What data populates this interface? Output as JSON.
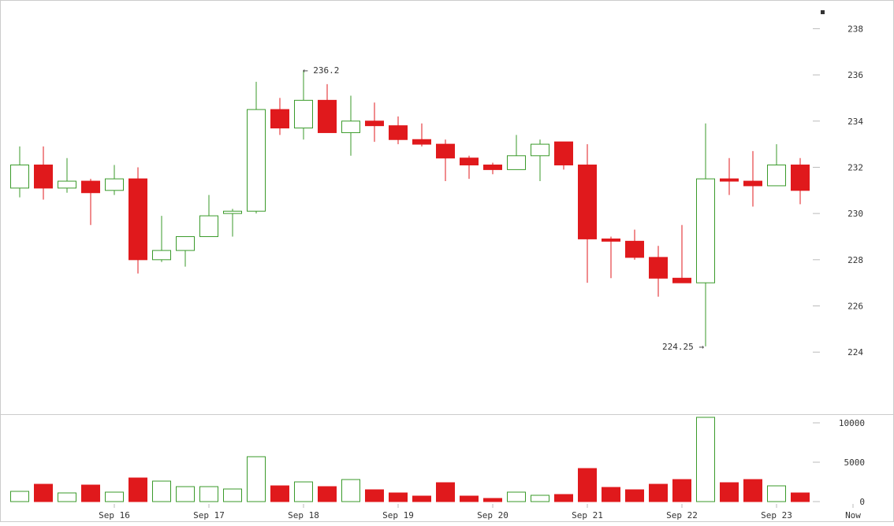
{
  "chart_data": {
    "type": "candlestick",
    "title": "",
    "colors": {
      "up": "#3a9a2a",
      "down": "#e0191c",
      "down_body": "#e0191c"
    },
    "x_tick_labels": [
      "Sep 16",
      "Sep 17",
      "Sep 18",
      "Sep 19",
      "Sep 20",
      "Sep 21",
      "Sep 22",
      "Sep 23",
      "Now"
    ],
    "price_axis": {
      "ticks": [
        224,
        226,
        228,
        230,
        232,
        234,
        236,
        238
      ],
      "ylim": [
        222.2,
        238.9
      ]
    },
    "volume_axis": {
      "ticks": [
        0,
        5000,
        10000
      ],
      "ylim": [
        0,
        10700
      ]
    },
    "annotations": {
      "high_label": "← 236.2",
      "low_label": "224.25 →"
    },
    "candles": [
      {
        "o": 231.1,
        "h": 232.9,
        "l": 230.7,
        "c": 232.1,
        "v": 1300
      },
      {
        "o": 232.1,
        "h": 232.9,
        "l": 230.6,
        "c": 231.1,
        "v": 2200
      },
      {
        "o": 231.1,
        "h": 232.4,
        "l": 230.9,
        "c": 231.4,
        "v": 1100
      },
      {
        "o": 231.4,
        "h": 231.5,
        "l": 229.5,
        "c": 230.9,
        "v": 2100
      },
      {
        "o": 231.0,
        "h": 232.1,
        "l": 230.8,
        "c": 231.5,
        "v": 1200
      },
      {
        "o": 231.5,
        "h": 232.0,
        "l": 227.4,
        "c": 228.0,
        "v": 3000
      },
      {
        "o": 228.0,
        "h": 229.9,
        "l": 227.9,
        "c": 228.4,
        "v": 2600
      },
      {
        "o": 228.4,
        "h": 229.0,
        "l": 227.7,
        "c": 229.0,
        "v": 1900
      },
      {
        "o": 229.0,
        "h": 230.8,
        "l": 229.0,
        "c": 229.9,
        "v": 1900
      },
      {
        "o": 230.0,
        "h": 230.2,
        "l": 229.0,
        "c": 230.1,
        "v": 1600
      },
      {
        "o": 230.1,
        "h": 235.7,
        "l": 230.0,
        "c": 234.5,
        "v": 5700
      },
      {
        "o": 234.5,
        "h": 235.0,
        "l": 233.4,
        "c": 233.7,
        "v": 2000
      },
      {
        "o": 233.7,
        "h": 236.2,
        "l": 233.2,
        "c": 234.9,
        "v": 2500
      },
      {
        "o": 234.9,
        "h": 235.6,
        "l": 233.5,
        "c": 233.5,
        "v": 1900
      },
      {
        "o": 233.5,
        "h": 235.1,
        "l": 232.5,
        "c": 234.0,
        "v": 2800
      },
      {
        "o": 234.0,
        "h": 234.8,
        "l": 233.1,
        "c": 233.8,
        "v": 1500
      },
      {
        "o": 233.8,
        "h": 234.2,
        "l": 233.0,
        "c": 233.2,
        "v": 1100
      },
      {
        "o": 233.2,
        "h": 233.9,
        "l": 232.9,
        "c": 233.0,
        "v": 700
      },
      {
        "o": 233.0,
        "h": 233.2,
        "l": 231.4,
        "c": 232.4,
        "v": 2400
      },
      {
        "o": 232.4,
        "h": 232.5,
        "l": 231.5,
        "c": 232.1,
        "v": 700
      },
      {
        "o": 232.1,
        "h": 232.2,
        "l": 231.7,
        "c": 231.9,
        "v": 400
      },
      {
        "o": 231.9,
        "h": 233.4,
        "l": 231.9,
        "c": 232.5,
        "v": 1200
      },
      {
        "o": 232.5,
        "h": 233.2,
        "l": 231.4,
        "c": 233.0,
        "v": 800
      },
      {
        "o": 233.1,
        "h": 233.1,
        "l": 231.9,
        "c": 232.1,
        "v": 900
      },
      {
        "o": 232.1,
        "h": 233.0,
        "l": 227.0,
        "c": 228.9,
        "v": 4200
      },
      {
        "o": 228.9,
        "h": 229.0,
        "l": 227.2,
        "c": 228.8,
        "v": 1800
      },
      {
        "o": 228.8,
        "h": 229.3,
        "l": 228.0,
        "c": 228.1,
        "v": 1500
      },
      {
        "o": 228.1,
        "h": 228.6,
        "l": 226.4,
        "c": 227.2,
        "v": 2200
      },
      {
        "o": 227.2,
        "h": 229.5,
        "l": 227.0,
        "c": 227.0,
        "v": 2800
      },
      {
        "o": 227.0,
        "h": 233.9,
        "l": 224.25,
        "c": 231.5,
        "v": 10700
      },
      {
        "o": 231.5,
        "h": 232.4,
        "l": 230.8,
        "c": 231.4,
        "v": 2400
      },
      {
        "o": 231.4,
        "h": 232.7,
        "l": 230.3,
        "c": 231.2,
        "v": 2800
      },
      {
        "o": 231.2,
        "h": 233.0,
        "l": 231.2,
        "c": 232.1,
        "v": 2000
      },
      {
        "o": 232.1,
        "h": 232.4,
        "l": 230.4,
        "c": 231.0,
        "v": 1100
      }
    ]
  }
}
